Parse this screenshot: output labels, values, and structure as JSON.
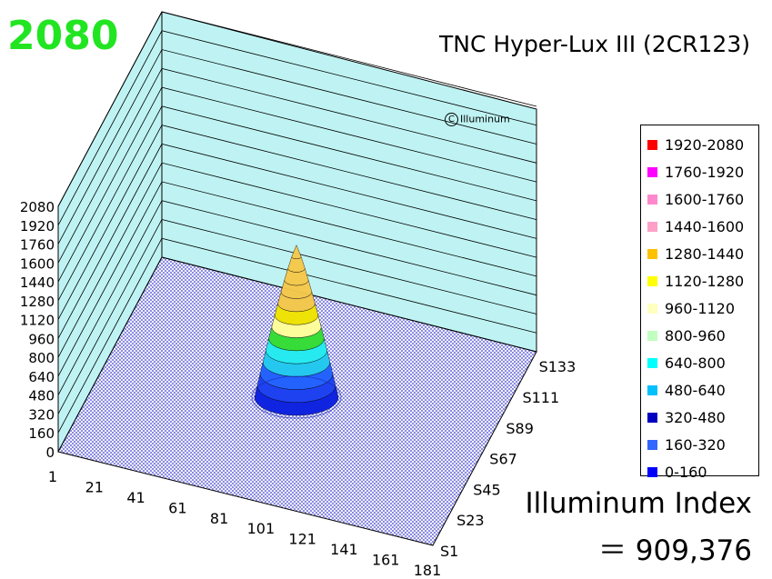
{
  "peak_value": "2080",
  "title": "TNC Hyper-Lux III (2CR123)",
  "watermark": "Illuminum",
  "index_label": "Illuminum Index",
  "index_value": "＝ 909,376",
  "chart_data": {
    "type": "3d-surface",
    "title": "TNC Hyper-Lux III (2CR123)",
    "z_ticks": [
      "0",
      "160",
      "320",
      "480",
      "640",
      "800",
      "960",
      "1120",
      "1280",
      "1440",
      "1600",
      "1760",
      "1920",
      "2080"
    ],
    "zlim": [
      0,
      2080
    ],
    "x_ticks": [
      "1",
      "21",
      "41",
      "61",
      "81",
      "101",
      "121",
      "141",
      "161",
      "181"
    ],
    "y_ticks": [
      "S1",
      "S23",
      "S45",
      "S67",
      "S89",
      "S111",
      "S133"
    ],
    "peak": 2080,
    "legend": [
      {
        "label": "1920-2080",
        "color": "#ff0000"
      },
      {
        "label": "1760-1920",
        "color": "#ff00ff"
      },
      {
        "label": "1600-1760",
        "color": "#ff88cc"
      },
      {
        "label": "1440-1600",
        "color": "#ffa0c8"
      },
      {
        "label": "1280-1440",
        "color": "#ffc000"
      },
      {
        "label": "1120-1280",
        "color": "#ffff00"
      },
      {
        "label": "960-1120",
        "color": "#ffffc0"
      },
      {
        "label": "800-960",
        "color": "#c0ffc0"
      },
      {
        "label": "640-800",
        "color": "#00ffff"
      },
      {
        "label": "480-640",
        "color": "#00c0ff"
      },
      {
        "label": "320-480",
        "color": "#0000c0"
      },
      {
        "label": "160-320",
        "color": "#3366ff"
      },
      {
        "label": "0-160",
        "color": "#0000ff"
      }
    ],
    "grid": true,
    "legend_position": "right"
  }
}
